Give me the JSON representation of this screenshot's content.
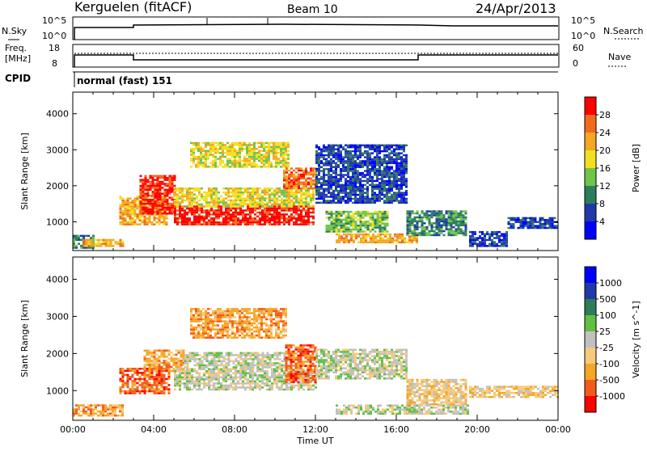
{
  "header": {
    "site": "Kerguelen (fitACF)",
    "beam": "Beam 10",
    "date": "24/Apr/2013"
  },
  "status_panels": {
    "nsky_label": "N.Sky",
    "nsky_ticks": [
      "10^5",
      "10^0"
    ],
    "nsearch_label": "N.Search",
    "nsearch_ticks": [
      "10^5",
      "10^0"
    ],
    "freq_label_1": "Freq.",
    "freq_label_2": "[MHz]",
    "freq_ticks": [
      "18",
      "8"
    ],
    "nave_label": "Nave",
    "nave_ticks": [
      "60",
      "0"
    ],
    "cpid_label": "CPID",
    "cpid_value": "normal (fast) 151"
  },
  "chart_data": [
    {
      "type": "heatmap",
      "name": "power",
      "ylabel": "Slant Range [km]",
      "ylim": [
        200,
        4600
      ],
      "yticks": [
        1000,
        2000,
        3000,
        4000
      ],
      "colorbar_label": "Power [dB]",
      "colorbar_ticks": [
        "4",
        "8",
        "12",
        "16",
        "20",
        "24",
        "28"
      ],
      "colors": [
        "#0000ff",
        "#1f3aa8",
        "#2e7d5a",
        "#6fc44a",
        "#f2e020",
        "#f5a623",
        "#f26b1d",
        "#ff0000"
      ],
      "regions": [
        {
          "t0": 0.0,
          "t1": 1.0,
          "r0": 250,
          "r1": 600,
          "level": 2
        },
        {
          "t0": 0.5,
          "t1": 2.5,
          "r0": 300,
          "r1": 500,
          "level": 5
        },
        {
          "t0": 2.3,
          "t1": 4.6,
          "r0": 900,
          "r1": 1700,
          "level": 5
        },
        {
          "t0": 3.3,
          "t1": 5.0,
          "r0": 1200,
          "r1": 2300,
          "level": 7
        },
        {
          "t0": 5.0,
          "t1": 11.9,
          "r0": 900,
          "r1": 1400,
          "level": 7
        },
        {
          "t0": 5.0,
          "t1": 11.9,
          "r0": 1400,
          "r1": 1900,
          "level": 4
        },
        {
          "t0": 5.8,
          "t1": 10.6,
          "r0": 2500,
          "r1": 3200,
          "level": 4
        },
        {
          "t0": 10.4,
          "t1": 12.0,
          "r0": 1900,
          "r1": 2500,
          "level": 6
        },
        {
          "t0": 12.0,
          "t1": 16.5,
          "r0": 1500,
          "r1": 3100,
          "level": 1
        },
        {
          "t0": 12.5,
          "t1": 15.5,
          "r0": 700,
          "r1": 1300,
          "level": 3
        },
        {
          "t0": 13.0,
          "t1": 17.0,
          "r0": 400,
          "r1": 650,
          "level": 5
        },
        {
          "t0": 16.5,
          "t1": 19.5,
          "r0": 600,
          "r1": 1300,
          "level": 2
        },
        {
          "t0": 19.6,
          "t1": 21.5,
          "r0": 300,
          "r1": 700,
          "level": 1
        },
        {
          "t0": 21.5,
          "t1": 24.0,
          "r0": 800,
          "r1": 1100,
          "level": 1
        }
      ]
    },
    {
      "type": "heatmap",
      "name": "velocity",
      "ylabel": "Slant Range [km]",
      "xlabel": "Time UT",
      "ylim": [
        200,
        4600
      ],
      "yticks": [
        1000,
        2000,
        3000,
        4000
      ],
      "xticks": [
        "00:00",
        "04:00",
        "08:00",
        "12:00",
        "16:00",
        "20:00",
        "00:00"
      ],
      "colorbar_label": "Velocity [m s^-1]",
      "colorbar_ticks": [
        "-1000",
        "-500",
        "-100",
        "-25",
        "25",
        "100",
        "500",
        "1000"
      ],
      "colors": [
        "#ff0000",
        "#f25a1e",
        "#f5a623",
        "#f7c97a",
        "#c0c0c0",
        "#60c040",
        "#2e7d5a",
        "#1f3aa8",
        "#0000ff"
      ],
      "regions": [
        {
          "t0": 0.0,
          "t1": 2.5,
          "r0": 300,
          "r1": 600,
          "level": 2
        },
        {
          "t0": 2.3,
          "t1": 4.8,
          "r0": 900,
          "r1": 1600,
          "level": 1
        },
        {
          "t0": 3.5,
          "t1": 5.5,
          "r0": 1500,
          "r1": 2100,
          "level": 2
        },
        {
          "t0": 5.0,
          "t1": 12.0,
          "r0": 1000,
          "r1": 1600,
          "level": 4
        },
        {
          "t0": 5.5,
          "t1": 10.5,
          "r0": 1600,
          "r1": 2000,
          "level": 4
        },
        {
          "t0": 5.8,
          "t1": 10.5,
          "r0": 2400,
          "r1": 3200,
          "level": 2
        },
        {
          "t0": 10.5,
          "t1": 12.0,
          "r0": 1200,
          "r1": 2200,
          "level": 1
        },
        {
          "t0": 12.0,
          "t1": 16.5,
          "r0": 1300,
          "r1": 2100,
          "level": 4
        },
        {
          "t0": 13.0,
          "t1": 19.5,
          "r0": 350,
          "r1": 600,
          "level": 4
        },
        {
          "t0": 16.5,
          "t1": 19.5,
          "r0": 600,
          "r1": 1300,
          "level": 3
        },
        {
          "t0": 19.6,
          "t1": 24.0,
          "r0": 800,
          "r1": 1100,
          "level": 3
        }
      ]
    }
  ]
}
